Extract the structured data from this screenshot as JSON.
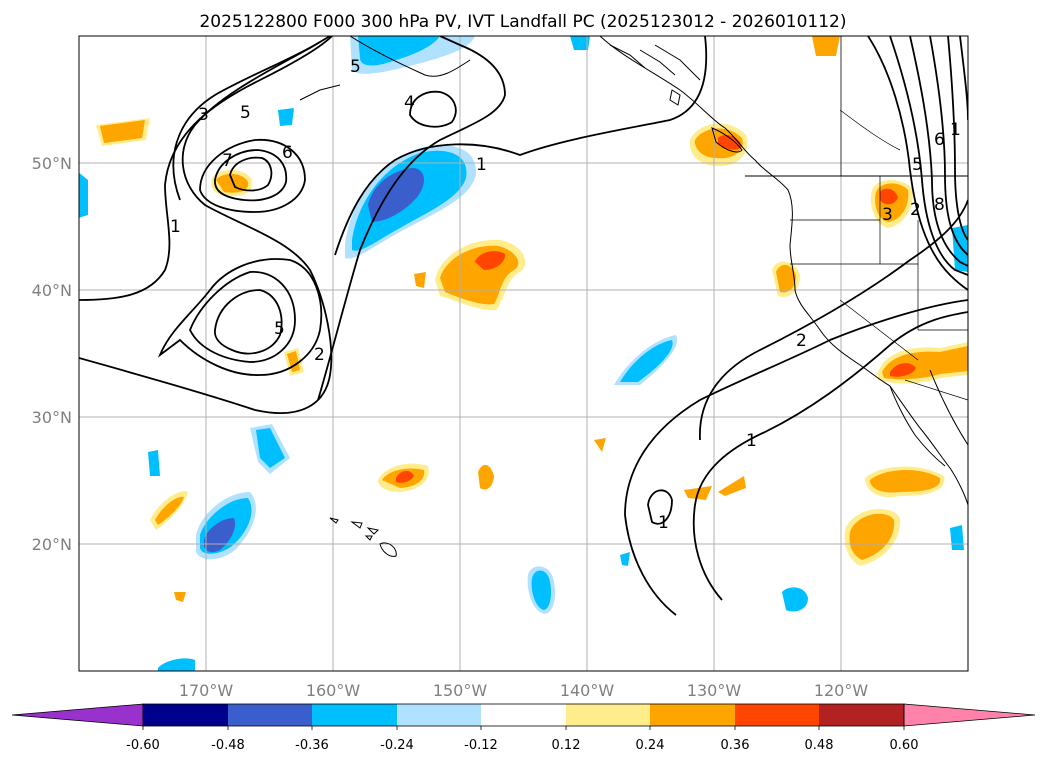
{
  "title": "2025122800 F000 300 hPa PV, IVT Landfall PC (2025123012 - 2026010112)",
  "map": {
    "lon_range": [
      -180,
      -110
    ],
    "lat_range": [
      10,
      60
    ],
    "lat_ticks": [
      {
        "value": 20,
        "label": "20°N"
      },
      {
        "value": 30,
        "label": "30°N"
      },
      {
        "value": 40,
        "label": "40°N"
      },
      {
        "value": 50,
        "label": "50°N"
      }
    ],
    "lon_ticks": [
      {
        "value": -170,
        "label": "170°W"
      },
      {
        "value": -160,
        "label": "160°W"
      },
      {
        "value": -150,
        "label": "150°W"
      },
      {
        "value": -140,
        "label": "140°W"
      },
      {
        "value": -130,
        "label": "130°W"
      },
      {
        "value": -120,
        "label": "120°W"
      }
    ],
    "contour_labels": [
      "1",
      "3",
      "5",
      "7",
      "6",
      "5",
      "2",
      "1",
      "4",
      "5",
      "1",
      "2",
      "1",
      "2",
      "5",
      "6",
      "8",
      "3",
      "1"
    ]
  },
  "colorbar": {
    "tick_labels": [
      "-0.60",
      "-0.48",
      "-0.36",
      "-0.24",
      "-0.12",
      "0.12",
      "0.24",
      "0.36",
      "0.48",
      "0.60"
    ],
    "colors": {
      "under": "#9932cc",
      "bins": [
        "#00008b",
        "#3a5fcd",
        "#00bfff",
        "#b0e2ff",
        "#ffffff",
        "#ffec8b",
        "#ffa500",
        "#ff4500",
        "#b22222"
      ],
      "over": "#ff82ab"
    }
  }
}
